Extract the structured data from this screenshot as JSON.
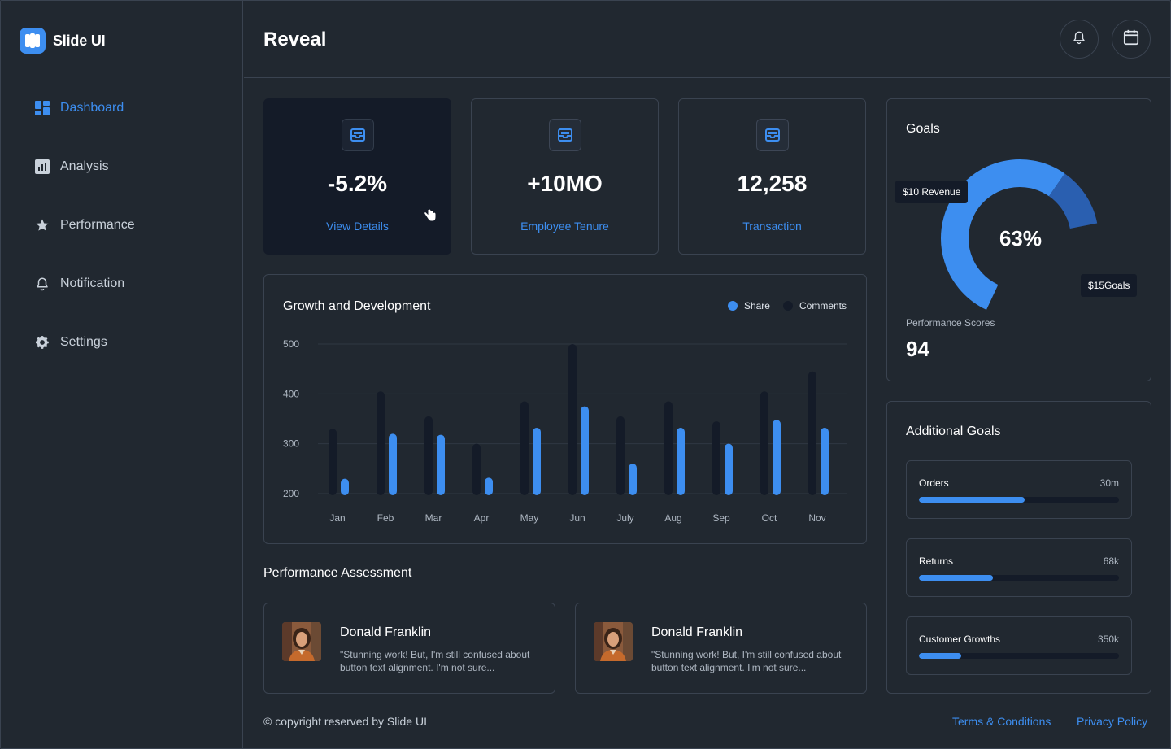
{
  "app": {
    "name": "Slide UI"
  },
  "header": {
    "title": "Reveal"
  },
  "sidebar": {
    "items": [
      {
        "label": "Dashboard",
        "icon": "dashboard-icon",
        "active": true
      },
      {
        "label": "Analysis",
        "icon": "analysis-icon",
        "active": false
      },
      {
        "label": "Performance",
        "icon": "star-icon",
        "active": false
      },
      {
        "label": "Notification",
        "icon": "bell-icon",
        "active": false
      },
      {
        "label": "Settings",
        "icon": "gear-icon",
        "active": false
      }
    ]
  },
  "stats": [
    {
      "value": "-5.2%",
      "link": "View Details"
    },
    {
      "value": "+10MO",
      "link": "Employee Tenure"
    },
    {
      "value": "12,258",
      "link": "Transaction"
    }
  ],
  "chart_data": {
    "type": "bar",
    "title": "Growth and Development",
    "categories": [
      "Jan",
      "Feb",
      "Mar",
      "Apr",
      "May",
      "Jun",
      "July",
      "Aug",
      "Sep",
      "Oct",
      "Nov"
    ],
    "series": [
      {
        "name": "Comments",
        "color": "#141b28",
        "values": [
          330,
          405,
          355,
          300,
          385,
          500,
          355,
          385,
          345,
          405,
          445
        ]
      },
      {
        "name": "Share",
        "color": "#3d8ef0",
        "values": [
          230,
          320,
          318,
          232,
          332,
          375,
          260,
          332,
          300,
          348,
          332
        ]
      }
    ],
    "ylim": [
      200,
      500
    ],
    "yticks": [
      500,
      400,
      300,
      200
    ],
    "grid": true,
    "legend": "top-right"
  },
  "performance": {
    "title": "Performance Assessment",
    "reviews": [
      {
        "name": "Donald Franklin",
        "text": "\"Stunning work! But, I'm still confused about button text alignment. I'm not sure..."
      },
      {
        "name": "Donald Franklin",
        "text": "\"Stunning work! But, I'm still confused about button text alignment. I'm not sure..."
      }
    ]
  },
  "goals": {
    "title": "Goals",
    "percent_label": "63%",
    "percent": 0.63,
    "revenue_tag": "$10 Revenue",
    "goals_tag": "$15Goals",
    "score_label": "Performance Scores",
    "score_value": "94"
  },
  "additional_goals": {
    "title": "Additional Goals",
    "items": [
      {
        "name": "Orders",
        "value": "30m",
        "progress": 0.53
      },
      {
        "name": "Returns",
        "value": "68k",
        "progress": 0.37
      },
      {
        "name": "Customer Growths",
        "value": "350k",
        "progress": 0.21
      }
    ]
  },
  "footer": {
    "copyright": "© copyright reserved by Slide UI",
    "terms": "Terms & Conditions",
    "privacy": "Privacy Policy"
  },
  "colors": {
    "accent": "#3d8ef0",
    "background": "#212830",
    "dark_card": "#141b28",
    "border": "#3a4350"
  }
}
